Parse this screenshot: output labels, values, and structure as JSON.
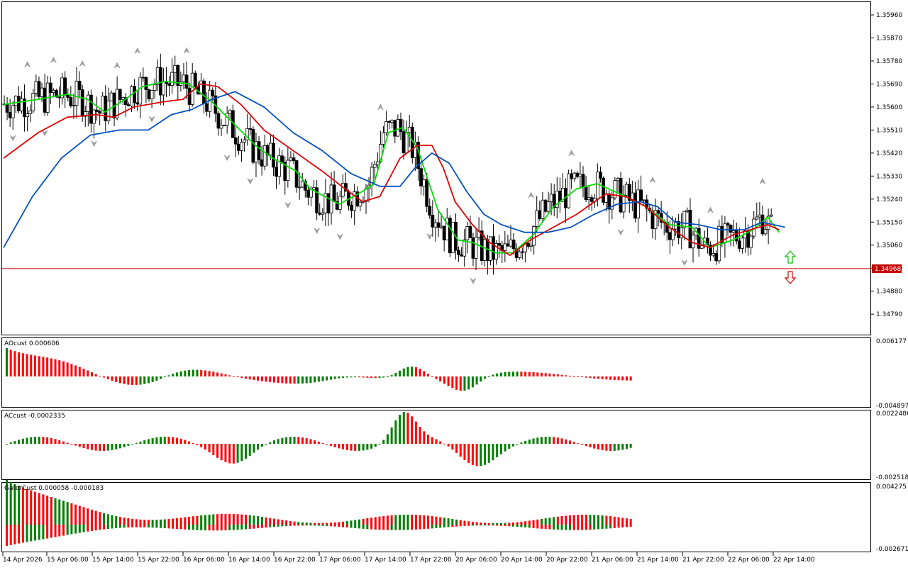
{
  "colors": {
    "bg": "#ffffff",
    "frame": "#000000",
    "up_bar": "#008000",
    "down_bar": "#ff0000",
    "bear_candle": "#000000",
    "bull_candle": "#ffffff",
    "ma_fast": "#00dd00",
    "ma_mid": "#e00000",
    "ma_slow": "#0050c0",
    "price_line": "#c00000",
    "fractal": "#a0a0a0",
    "arrow_up": "#00c000",
    "arrow_down": "#e00000"
  },
  "chart_data": [
    {
      "type": "candlestick",
      "panel": "price",
      "ylim": [
        1.3471,
        1.3601
      ],
      "y_ticks": [
        "1.35960",
        "1.35870",
        "1.35780",
        "1.35690",
        "1.35600",
        "1.35510",
        "1.35420",
        "1.35330",
        "1.35240",
        "1.35150",
        "1.35060",
        "1.34970",
        "1.34880",
        "1.34790"
      ],
      "current_price": "1.34968",
      "trend_arrows": [
        "up-arrow-icon",
        "down-arrow-icon"
      ],
      "moving_averages": [
        {
          "color": "#00dd00",
          "points": [
            [
              0,
              1.3561
            ],
            [
              12,
              1.3563
            ],
            [
              22,
              1.3565
            ],
            [
              29,
              1.3563
            ],
            [
              35,
              1.3558
            ],
            [
              42,
              1.3563
            ],
            [
              48,
              1.3568
            ],
            [
              56,
              1.357
            ],
            [
              64,
              1.3569
            ],
            [
              72,
              1.3562
            ],
            [
              80,
              1.3553
            ],
            [
              87,
              1.3545
            ],
            [
              93,
              1.354
            ],
            [
              101,
              1.3535
            ],
            [
              106,
              1.3528
            ],
            [
              116,
              1.3522
            ],
            [
              124,
              1.3527
            ],
            [
              128,
              1.353
            ],
            [
              133,
              1.355
            ],
            [
              138,
              1.3552
            ],
            [
              143,
              1.3544
            ],
            [
              150,
              1.352
            ],
            [
              157,
              1.3508
            ],
            [
              162,
              1.3507
            ],
            [
              170,
              1.3503
            ],
            [
              176,
              1.3503
            ],
            [
              183,
              1.351
            ],
            [
              190,
              1.3521
            ],
            [
              198,
              1.3528
            ],
            [
              205,
              1.353
            ],
            [
              215,
              1.3525
            ],
            [
              222,
              1.3521
            ],
            [
              230,
              1.3514
            ],
            [
              238,
              1.3513
            ],
            [
              244,
              1.3505
            ],
            [
              252,
              1.3508
            ],
            [
              259,
              1.3512
            ],
            [
              264,
              1.3517
            ],
            [
              268,
              1.3511
            ]
          ]
        },
        {
          "color": "#e00000",
          "points": [
            [
              0,
              1.354
            ],
            [
              12,
              1.355
            ],
            [
              22,
              1.3556
            ],
            [
              32,
              1.3557
            ],
            [
              38,
              1.3556
            ],
            [
              45,
              1.356
            ],
            [
              55,
              1.3562
            ],
            [
              62,
              1.3563
            ],
            [
              68,
              1.3569
            ],
            [
              74,
              1.3568
            ],
            [
              82,
              1.3561
            ],
            [
              90,
              1.3551
            ],
            [
              100,
              1.3543
            ],
            [
              110,
              1.3535
            ],
            [
              118,
              1.3528
            ],
            [
              124,
              1.3523
            ],
            [
              130,
              1.3525
            ],
            [
              137,
              1.354
            ],
            [
              143,
              1.3545
            ],
            [
              148,
              1.3545
            ],
            [
              152,
              1.3536
            ],
            [
              156,
              1.3523
            ],
            [
              162,
              1.3514
            ],
            [
              168,
              1.3507
            ],
            [
              175,
              1.3502
            ],
            [
              182,
              1.3508
            ],
            [
              190,
              1.3513
            ],
            [
              198,
              1.3518
            ],
            [
              208,
              1.3526
            ],
            [
              215,
              1.3525
            ],
            [
              222,
              1.3521
            ],
            [
              230,
              1.3513
            ],
            [
              238,
              1.3507
            ],
            [
              244,
              1.3505
            ],
            [
              252,
              1.351
            ],
            [
              258,
              1.3512
            ],
            [
              264,
              1.3514
            ],
            [
              268,
              1.3512
            ]
          ]
        },
        {
          "color": "#0050c0",
          "points": [
            [
              0,
              1.3505
            ],
            [
              10,
              1.3525
            ],
            [
              20,
              1.354
            ],
            [
              30,
              1.3549
            ],
            [
              40,
              1.3551
            ],
            [
              50,
              1.3551
            ],
            [
              58,
              1.3557
            ],
            [
              65,
              1.3559
            ],
            [
              72,
              1.3563
            ],
            [
              80,
              1.3566
            ],
            [
              90,
              1.356
            ],
            [
              100,
              1.355
            ],
            [
              110,
              1.3543
            ],
            [
              120,
              1.3534
            ],
            [
              130,
              1.3529
            ],
            [
              137,
              1.3529
            ],
            [
              142,
              1.3536
            ],
            [
              148,
              1.3542
            ],
            [
              154,
              1.3538
            ],
            [
              160,
              1.3527
            ],
            [
              166,
              1.3518
            ],
            [
              172,
              1.3514
            ],
            [
              180,
              1.3511
            ],
            [
              188,
              1.3511
            ],
            [
              196,
              1.3513
            ],
            [
              204,
              1.3518
            ],
            [
              212,
              1.3522
            ],
            [
              220,
              1.3523
            ],
            [
              226,
              1.3521
            ],
            [
              232,
              1.3515
            ],
            [
              240,
              1.3514
            ],
            [
              248,
              1.3512
            ],
            [
              256,
              1.3512
            ],
            [
              262,
              1.3515
            ],
            [
              270,
              1.3513
            ]
          ]
        }
      ]
    },
    {
      "type": "bar",
      "panel": "AOcust",
      "label": "AOcust 0.000606",
      "ylim": [
        -0.004897,
        0.006177
      ],
      "y_ticks": [
        "0.006177",
        "-0.004897"
      ]
    },
    {
      "type": "bar",
      "panel": "ACcust",
      "label": "ACcust -0.0002335",
      "ylim": [
        -0.002518,
        0.0022486
      ],
      "y_ticks": [
        "0.0022486",
        "-0.0025180"
      ]
    },
    {
      "type": "bar",
      "panel": "GatorCust",
      "label": "GatorCust 0.000058 -0.000183",
      "ylim": [
        -0.002671,
        0.004275
      ],
      "y_ticks": [
        "0.004275",
        "-0.002671"
      ]
    }
  ],
  "x_axis": {
    "ticks": [
      "14 Apr 2026",
      "15 Apr 06:00",
      "15 Apr 14:00",
      "15 Apr 22:00",
      "16 Apr 06:00",
      "16 Apr 14:00",
      "16 Apr 22:00",
      "17 Apr 06:00",
      "17 Apr 14:00",
      "17 Apr 22:00",
      "20 Apr 06:00",
      "20 Apr 14:00",
      "20 Apr 22:00",
      "21 Apr 06:00",
      "21 Apr 14:00",
      "21 Apr 22:00",
      "22 Apr 06:00",
      "22 Apr 14:00"
    ]
  }
}
